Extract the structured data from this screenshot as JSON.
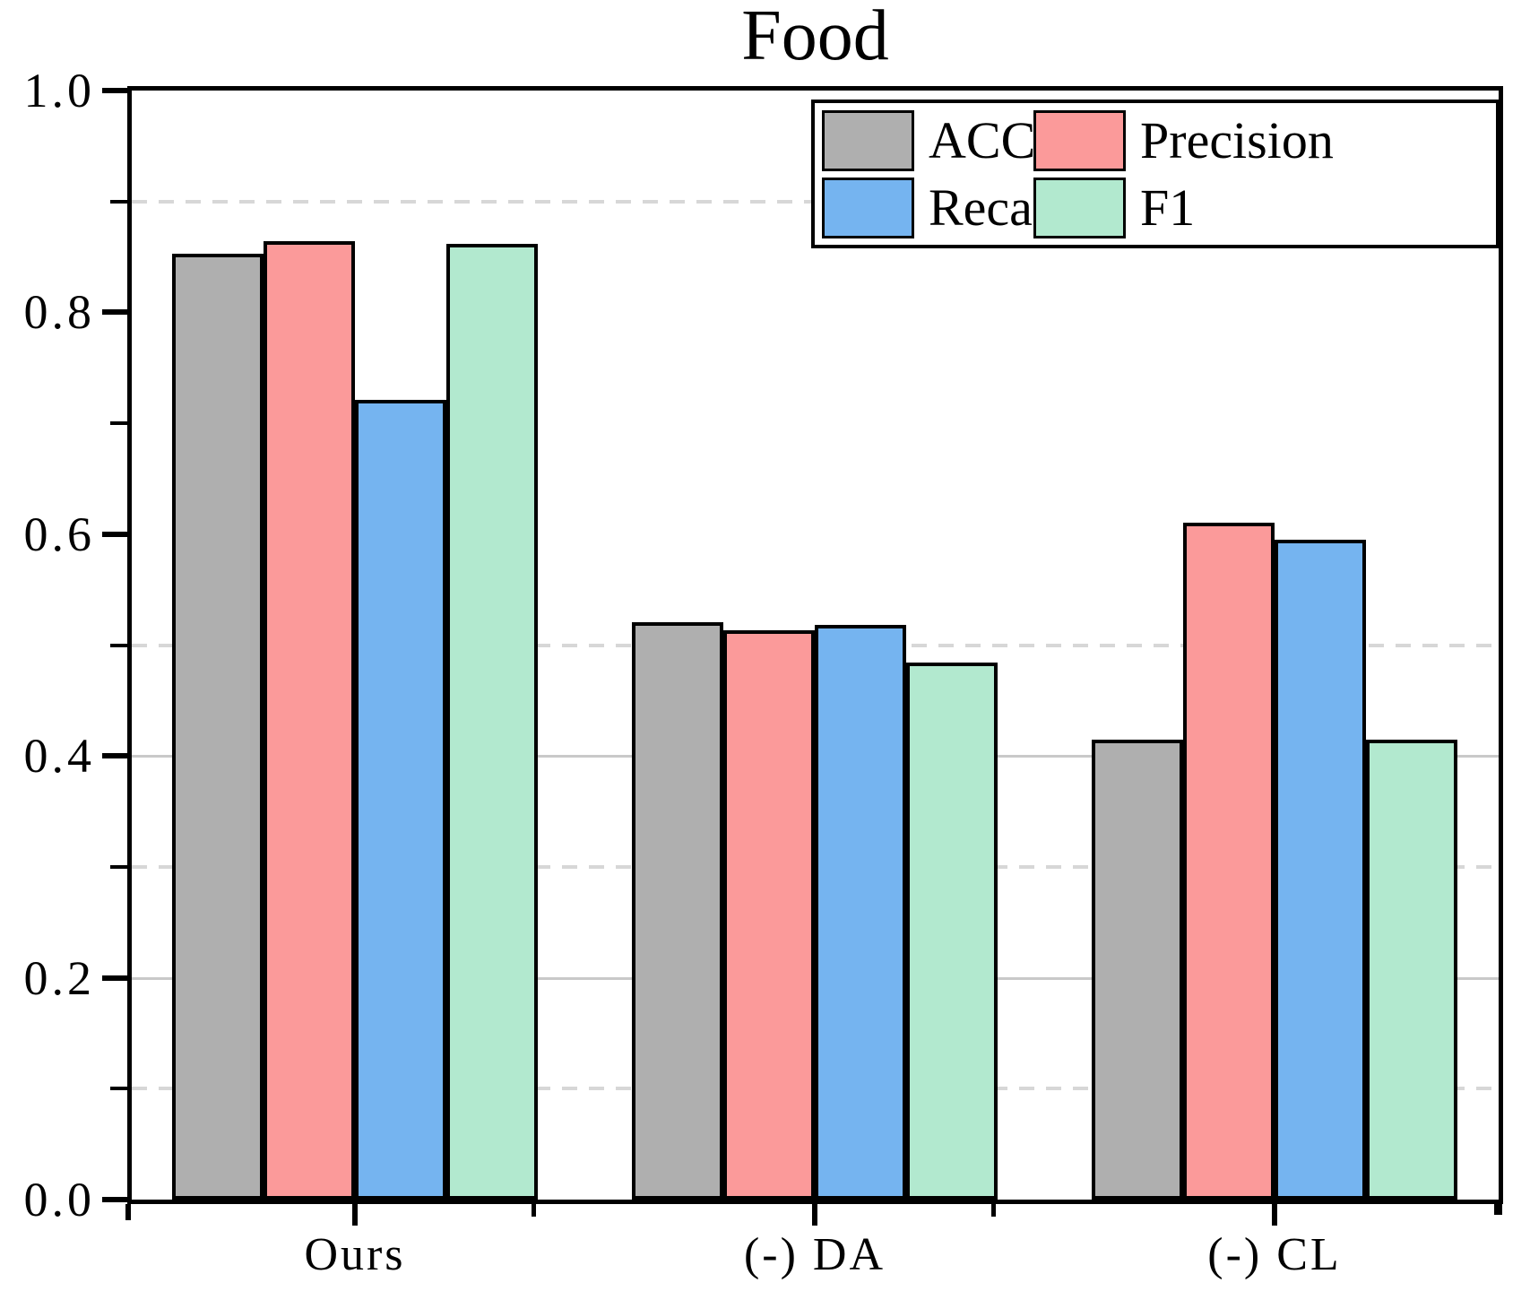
{
  "chart_data": {
    "type": "bar",
    "title": "Food",
    "categories": [
      "Ours",
      "(-) DA",
      "(-) CL"
    ],
    "series": [
      {
        "name": "ACC",
        "color": "#afafaf",
        "values": [
          0.853,
          0.521,
          0.415
        ]
      },
      {
        "name": "Precision",
        "color": "#fb9a9a",
        "values": [
          0.864,
          0.513,
          0.61
        ]
      },
      {
        "name": "Recall",
        "color": "#75b4f0",
        "values": [
          0.721,
          0.518,
          0.595
        ]
      },
      {
        "name": "F1",
        "color": "#b2e9cf",
        "values": [
          0.862,
          0.484,
          0.415
        ]
      }
    ],
    "xlabel": "",
    "ylabel": "",
    "ylim": [
      0.0,
      1.0
    ],
    "y_axis": {
      "major_ticks": [
        {
          "value": 0.0,
          "label": "0.0"
        },
        {
          "value": 0.2,
          "label": "0.2"
        },
        {
          "value": 0.4,
          "label": "0.4"
        },
        {
          "value": 0.6,
          "label": "0.6"
        },
        {
          "value": 0.8,
          "label": "0.8"
        },
        {
          "value": 1.0,
          "label": "1.0"
        }
      ],
      "minor_ticks": [
        0.1,
        0.3,
        0.5,
        0.7,
        0.9
      ]
    },
    "grid": {
      "dashed_values": [
        0.1,
        0.3,
        0.5,
        0.9
      ],
      "solid_values": [
        0.2,
        0.4
      ],
      "dashed_color": "#d7d7d7",
      "solid_color": "#c9c9c9"
    },
    "legend": {
      "position": "top-right",
      "columns": 2,
      "entries": [
        "ACC",
        "Precision",
        "Recall",
        "F1"
      ]
    },
    "colors": {
      "axis": "#000000",
      "bar_edge": "#000000",
      "background": "#ffffff"
    }
  }
}
